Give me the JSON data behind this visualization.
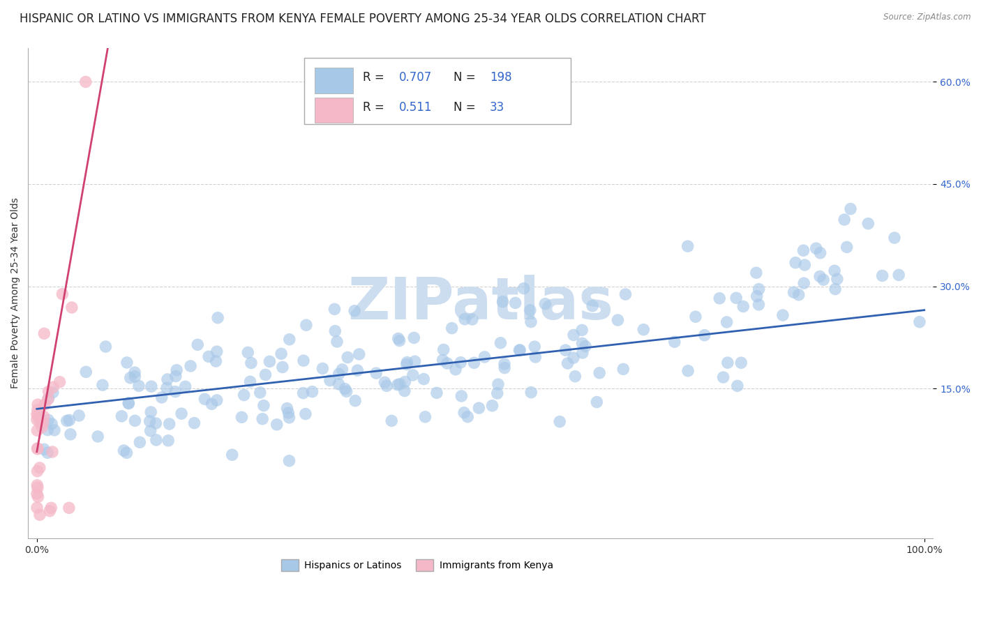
{
  "title": "HISPANIC OR LATINO VS IMMIGRANTS FROM KENYA FEMALE POVERTY AMONG 25-34 YEAR OLDS CORRELATION CHART",
  "source": "Source: ZipAtlas.com",
  "ylabel": "Female Poverty Among 25-34 Year Olds",
  "xlim": [
    -0.01,
    1.01
  ],
  "ylim": [
    -0.07,
    0.65
  ],
  "yticks": [
    0.15,
    0.3,
    0.45,
    0.6
  ],
  "ytick_labels": [
    "15.0%",
    "30.0%",
    "45.0%",
    "60.0%"
  ],
  "xticks": [
    0.0,
    1.0
  ],
  "xtick_labels": [
    "0.0%",
    "100.0%"
  ],
  "blue_color": "#a8c8e8",
  "pink_color": "#f5b8c8",
  "blue_line_color": "#3060b0",
  "pink_line_color": "#d04070",
  "pink_dash_color": "#e090a8",
  "watermark_color": "#ccddf0",
  "background_color": "#ffffff",
  "grid_color": "#cccccc",
  "title_fontsize": 12,
  "axis_label_fontsize": 10,
  "tick_fontsize": 10,
  "legend_r_blue": "0.707",
  "legend_n_blue": "198",
  "legend_r_pink": "0.511",
  "legend_n_pink": "33",
  "legend_text_color": "#3366cc",
  "legend_label_color": "#333333",
  "seed": 7
}
